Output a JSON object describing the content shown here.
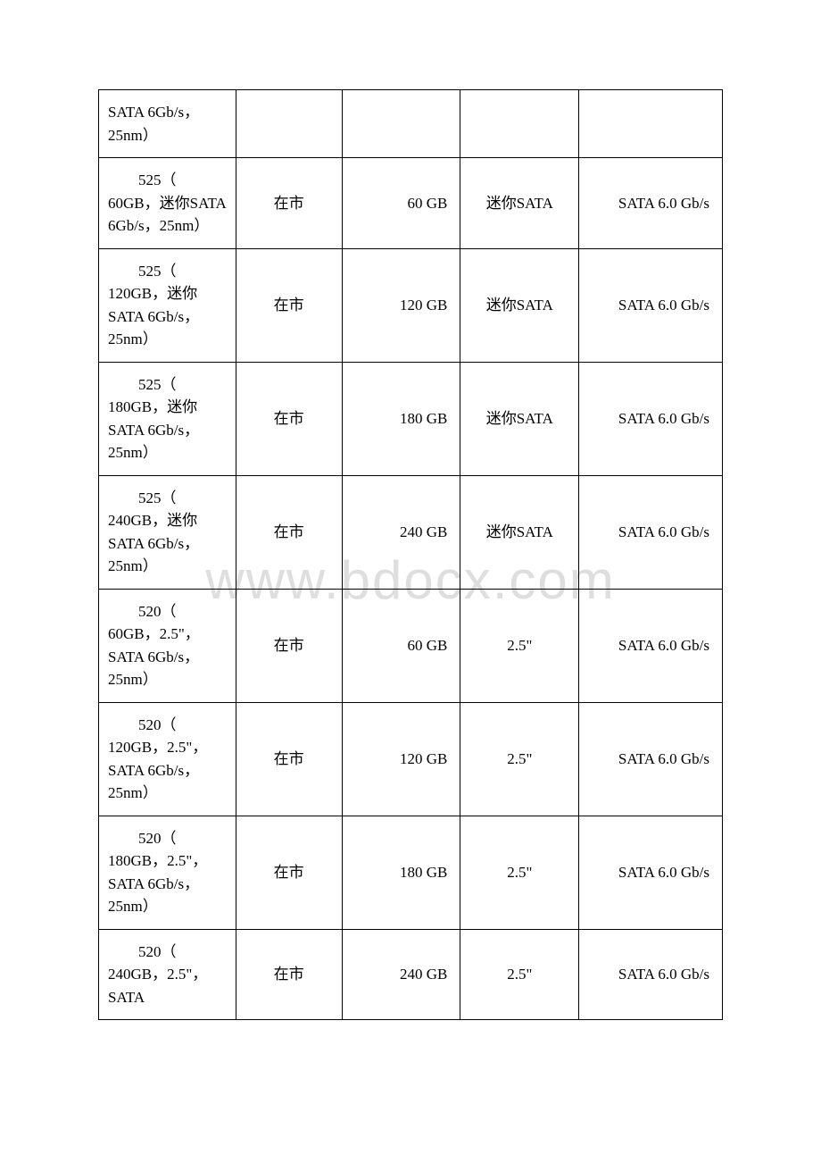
{
  "watermark": "www.bdocx.com",
  "table": {
    "rows": [
      {
        "col1": "SATA 6Gb/s，25nm）",
        "col1_indent": false,
        "col2": "",
        "col3": "",
        "col4": "",
        "col5": ""
      },
      {
        "col1_line1": "525（",
        "col1_rest": "60GB，迷你SATA 6Gb/s，25nm）",
        "col2": "在市",
        "col3": "60 GB",
        "col4": "迷你SATA",
        "col5": "SATA 6.0 Gb/s"
      },
      {
        "col1_line1": "525（",
        "col1_rest": "120GB，迷你 SATA 6Gb/s，25nm）",
        "col2": "在市",
        "col3": "120 GB",
        "col4": "迷你SATA",
        "col5": "SATA 6.0 Gb/s"
      },
      {
        "col1_line1": "525（",
        "col1_rest": "180GB，迷你 SATA 6Gb/s，25nm）",
        "col2": "在市",
        "col3": "180 GB",
        "col4": "迷你SATA",
        "col5": "SATA 6.0 Gb/s"
      },
      {
        "col1_line1": "525（",
        "col1_rest": "240GB，迷你 SATA 6Gb/s，25nm）",
        "col2": "在市",
        "col3": "240 GB",
        "col4": "迷你SATA",
        "col5": "SATA 6.0 Gb/s"
      },
      {
        "col1_line1": "520（",
        "col1_rest": "60GB，2.5\"，SATA 6Gb/s，25nm）",
        "col2": "在市",
        "col3": "60 GB",
        "col4": "2.5\"",
        "col5": "SATA 6.0 Gb/s"
      },
      {
        "col1_line1": "520（",
        "col1_rest": "120GB，2.5\"，SATA 6Gb/s，25nm）",
        "col2": "在市",
        "col3": "120 GB",
        "col4": "2.5\"",
        "col5": "SATA 6.0 Gb/s"
      },
      {
        "col1_line1": "520（",
        "col1_rest": "180GB，2.5\"，SATA 6Gb/s，25nm）",
        "col2": "在市",
        "col3": "180 GB",
        "col4": "2.5\"",
        "col5": "SATA 6.0 Gb/s"
      },
      {
        "col1_line1": "520（",
        "col1_rest": "240GB，2.5\"，SATA",
        "col2": "在市",
        "col3": "240 GB",
        "col4": "2.5\"",
        "col5": "SATA 6.0 Gb/s"
      }
    ]
  }
}
